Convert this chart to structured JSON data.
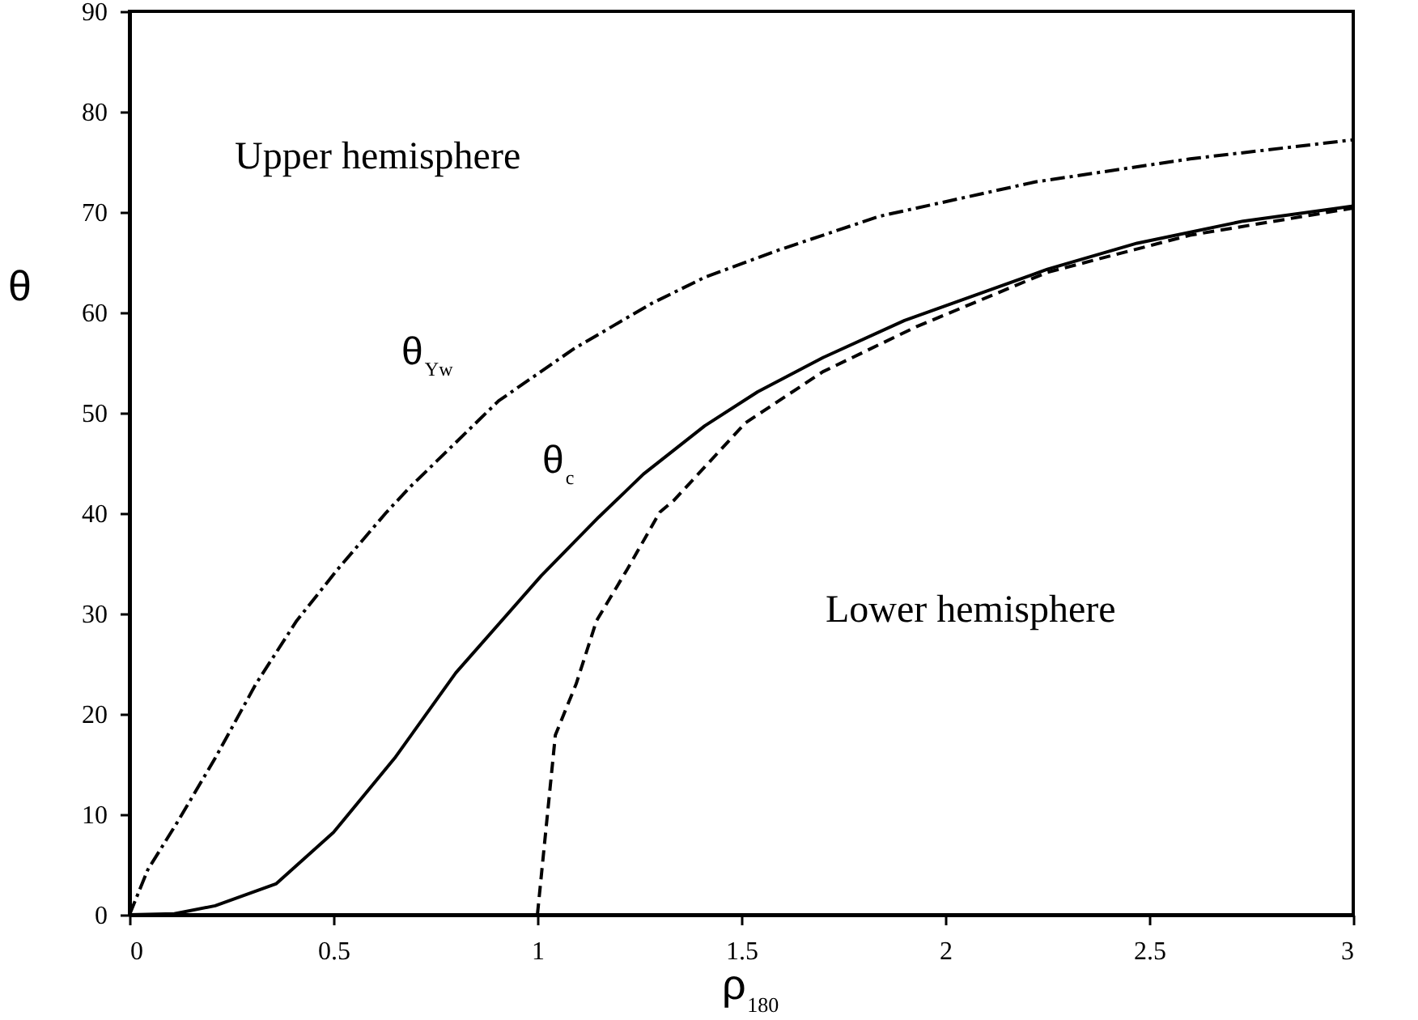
{
  "chart_data": {
    "type": "line",
    "xlabel": "ρ$_{180}$",
    "ylabel": "θ",
    "xlim": [
      0,
      3
    ],
    "xticks": [
      0,
      0.5,
      1,
      1.5,
      2,
      2.5,
      3
    ],
    "ylim": [
      0,
      90
    ],
    "yticks": [
      0,
      10,
      20,
      30,
      40,
      50,
      60,
      70,
      80,
      90
    ],
    "grid": false,
    "marker": "none",
    "annotations": [
      "Upper hemisphere",
      "Lower hemisphere"
    ],
    "series": [
      {
        "name": "θ$_{Yw}$",
        "color": "#000000",
        "line_style": "dashdot",
        "x": [
          0,
          0.045,
          0.12,
          0.21,
          0.31,
          0.41,
          0.51,
          0.63,
          0.69,
          0.905,
          1.09,
          1.28,
          1.41,
          1.59,
          1.84,
          2.22,
          2.6,
          3.0
        ],
        "values": [
          0,
          4.5,
          9.4,
          15.6,
          23,
          29.3,
          34.4,
          40.1,
          42.7,
          51.2,
          56.4,
          60.9,
          63.5,
          66.2,
          69.6,
          73.0,
          75.3,
          77.2
        ]
      },
      {
        "name": "θ$_{c}$",
        "color": "#000000",
        "line_style": "solid",
        "x": [
          0,
          0.11,
          0.21,
          0.36,
          0.5,
          0.65,
          0.8,
          1.01,
          1.15,
          1.26,
          1.41,
          1.54,
          1.7,
          1.9,
          2.25,
          2.47,
          2.73,
          3.0
        ],
        "values": [
          0,
          0.1,
          0.9,
          3.1,
          8.2,
          15.6,
          24.1,
          33.8,
          39.6,
          43.9,
          48.7,
          52.1,
          55.5,
          59.2,
          64.3,
          66.9,
          69.1,
          70.6
        ]
      },
      {
        "color": "#000000",
        "line_style": "dashed",
        "x": [
          1.0,
          1.044,
          1.095,
          1.145,
          1.22,
          1.3,
          1.335,
          1.51,
          1.7,
          1.93,
          2.25,
          2.6,
          3.0
        ],
        "values": [
          0,
          17.9,
          23.0,
          29.3,
          34.4,
          40.1,
          41.3,
          49,
          54.1,
          58.6,
          64.0,
          67.7,
          70.4
        ]
      }
    ]
  }
}
